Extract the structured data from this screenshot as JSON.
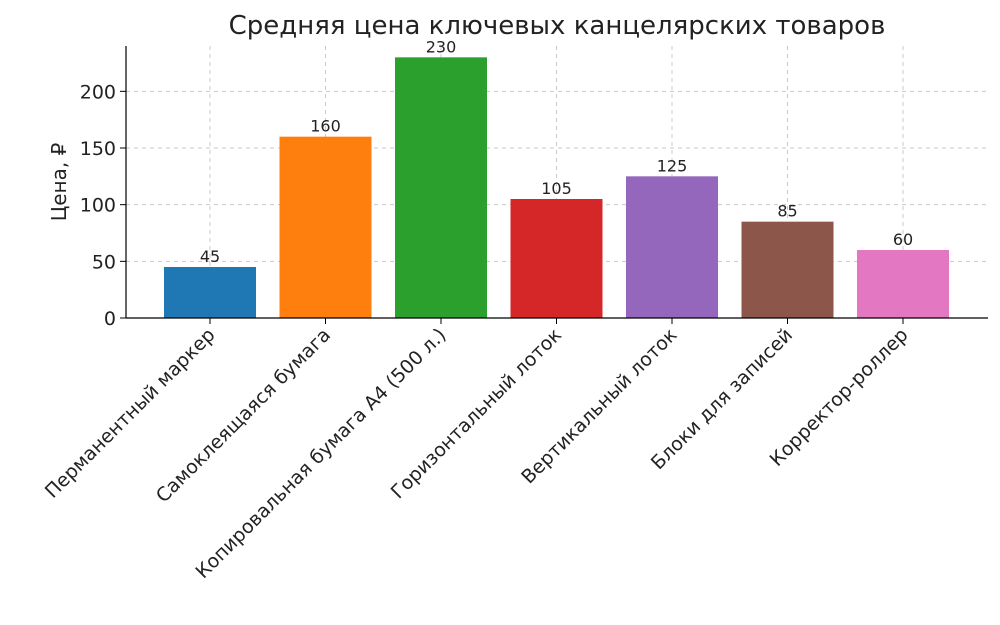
{
  "chart_data": {
    "type": "bar",
    "title": "Средняя цена ключевых канцелярских товаров",
    "xlabel": "",
    "ylabel": "Цена, ₽",
    "ylim": [
      0,
      240
    ],
    "yticks": [
      0,
      50,
      100,
      150,
      200
    ],
    "grid": true,
    "categories": [
      "Перманентный маркер",
      "Самоклеящаяся бумага",
      "Копировальная бумага А4 (500 л.)",
      "Горизонтальный лоток",
      "Вертикальный лоток",
      "Блоки для записей",
      "Корректор-роллер"
    ],
    "values": [
      45,
      160,
      230,
      105,
      125,
      85,
      60
    ],
    "data_labels": [
      "45",
      "160",
      "230",
      "105",
      "125",
      "85",
      "60"
    ],
    "colors": [
      "#1f77b4",
      "#ff7f0e",
      "#2ca02c",
      "#d62728",
      "#9467bd",
      "#8c564b",
      "#e377c2"
    ]
  }
}
